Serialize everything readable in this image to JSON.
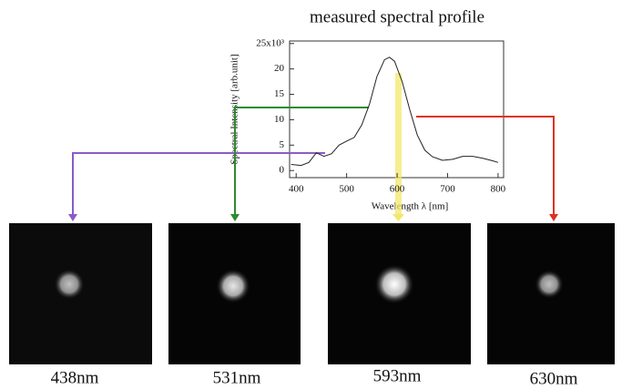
{
  "chart_data": {
    "type": "line",
    "title": "measured spectral profile",
    "x_label": "Wavelength λ [nm]",
    "y_label": "Spectral Intensity [arb.unit]",
    "x": [
      390,
      410,
      425,
      440,
      455,
      470,
      485,
      500,
      515,
      530,
      545,
      560,
      575,
      585,
      595,
      610,
      625,
      640,
      655,
      670,
      690,
      710,
      730,
      750,
      770,
      790,
      800
    ],
    "series": [
      {
        "color": "#222222",
        "values": [
          1.2,
          1.0,
          1.6,
          3.5,
          2.8,
          3.3,
          5.0,
          5.8,
          6.5,
          9,
          13,
          18.5,
          21.8,
          22.3,
          21.5,
          17.5,
          12,
          7,
          4,
          2.7,
          2.0,
          2.2,
          2.8,
          2.8,
          2.4,
          1.9,
          1.6
        ]
      }
    ],
    "xlim": [
      387,
      811
    ],
    "ylim": [
      -1.4,
      25.5
    ],
    "xticks": [
      400,
      500,
      600,
      700,
      800
    ],
    "yticks": [
      0,
      5,
      10,
      15,
      20,
      {
        "value": 25,
        "label": "25x10³"
      }
    ]
  },
  "panels": [
    {
      "label": "438nm"
    },
    {
      "label": "531nm"
    },
    {
      "label": "593nm"
    },
    {
      "label": "630nm"
    }
  ]
}
